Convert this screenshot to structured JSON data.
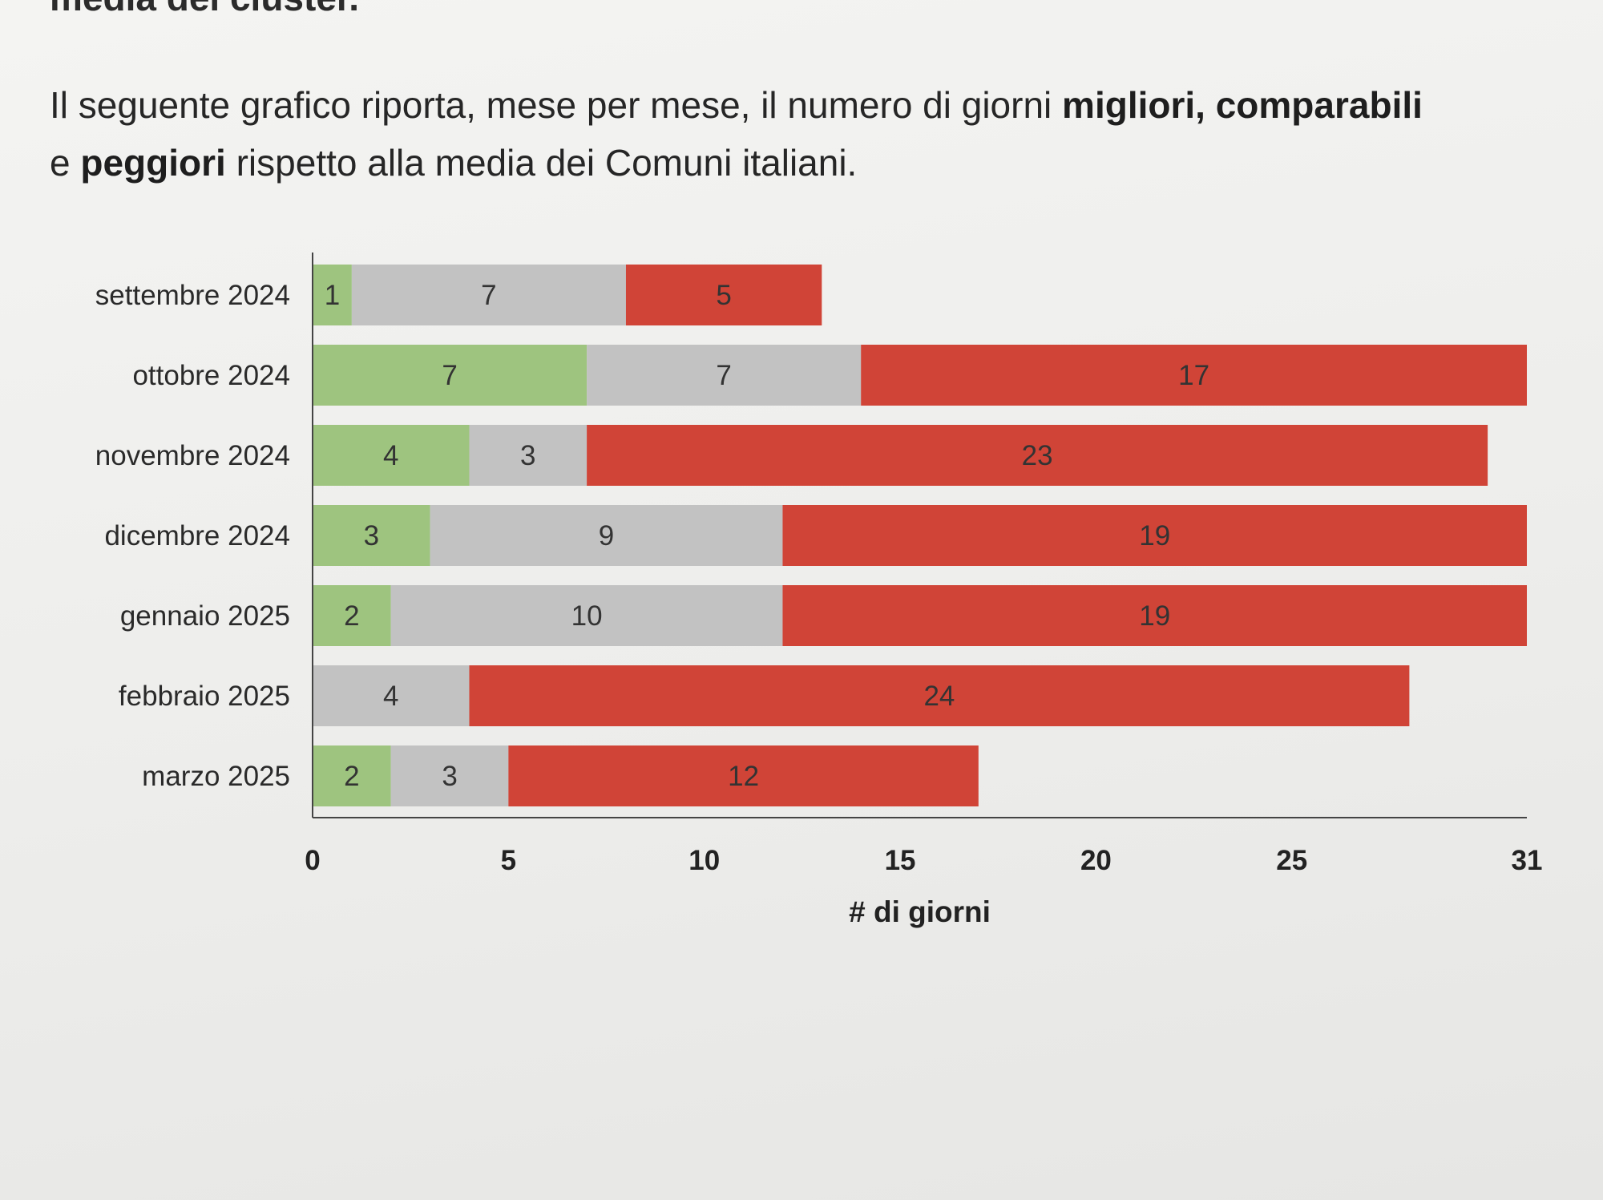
{
  "text": {
    "cutoff_line": "media dei cluster.",
    "p_before_1": "Il seguente grafico riporta, mese per mese, il numero di giorni ",
    "p_bold_1": "migliori, comparabili",
    "p_mid": " e ",
    "p_bold_2": "peggiori",
    "p_after": " rispetto alla media dei Comuni italiani."
  },
  "chart_data": {
    "type": "bar",
    "orientation": "horizontal",
    "stacked": true,
    "title": "",
    "xlabel": "# di giorni",
    "ylabel": "",
    "xlim": [
      0,
      31
    ],
    "xticks": [
      0,
      5,
      10,
      15,
      20,
      25,
      31
    ],
    "grid": false,
    "legend": "none",
    "categories": [
      "settembre 2024",
      "ottobre 2024",
      "novembre 2024",
      "dicembre 2024",
      "gennaio 2025",
      "febbraio 2025",
      "marzo 2025"
    ],
    "series": [
      {
        "key": "migliori",
        "color": "#9ec47f",
        "values": [
          1,
          7,
          4,
          3,
          2,
          0,
          2
        ]
      },
      {
        "key": "comparabili",
        "color": "#c2c2c2",
        "values": [
          7,
          7,
          3,
          9,
          10,
          4,
          3
        ]
      },
      {
        "key": "peggiori",
        "color": "#d04437",
        "values": [
          5,
          17,
          23,
          19,
          19,
          24,
          12
        ]
      }
    ]
  }
}
